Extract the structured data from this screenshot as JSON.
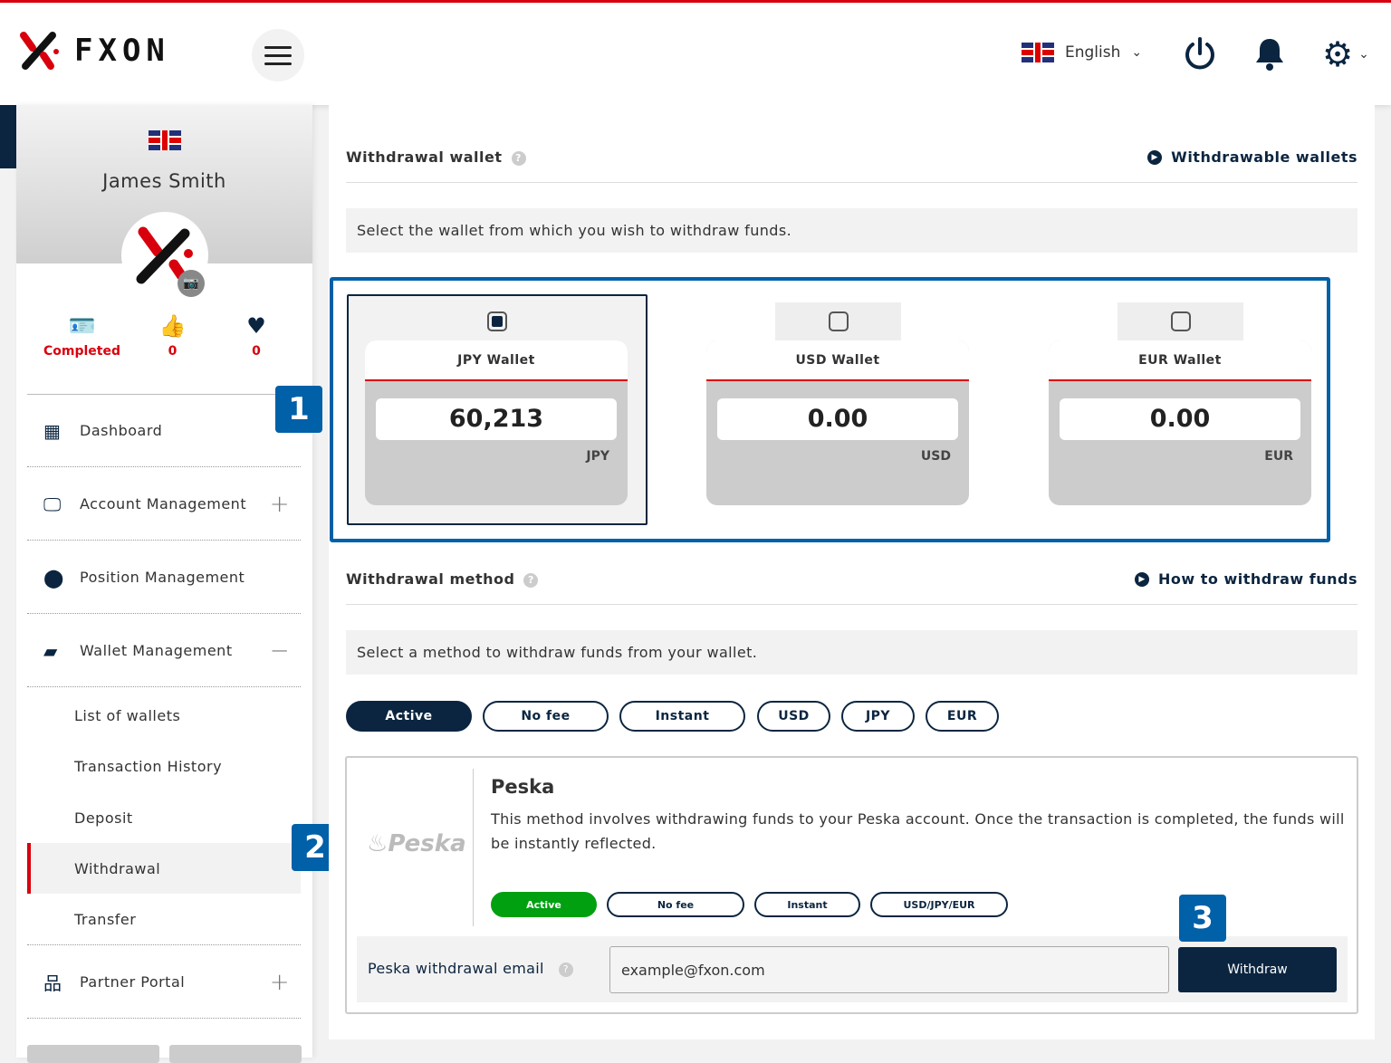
{
  "brand": {
    "name": "FXON",
    "accent": "#d9000d",
    "navy": "#0b2540",
    "highlight": "#0060a8"
  },
  "header": {
    "language": "English",
    "icons": [
      "menu-icon",
      "power-icon",
      "bell-icon",
      "gear-icon"
    ]
  },
  "profile": {
    "name": "James Smith",
    "stats": [
      {
        "icon": "id-card-check-icon",
        "value": "Completed"
      },
      {
        "icon": "thumbs-up-icon",
        "value": "0"
      },
      {
        "icon": "heart-icon",
        "value": "0"
      }
    ]
  },
  "sidebar": {
    "items": [
      {
        "label": "Dashboard",
        "icon": "grid-icon"
      },
      {
        "label": "Account Management",
        "icon": "monitor-icon",
        "toggle": "+"
      },
      {
        "label": "Position Management",
        "icon": "map-pin-icon"
      },
      {
        "label": "Wallet Management",
        "icon": "wallet-icon",
        "toggle": "−"
      },
      {
        "label": "Partner Portal",
        "icon": "sitemap-icon",
        "toggle": "+"
      }
    ],
    "subitems": [
      "List of wallets",
      "Transaction History",
      "Deposit",
      "Withdrawal",
      "Transfer"
    ],
    "active_subitem": "Withdrawal"
  },
  "badges": [
    "1",
    "2",
    "3"
  ],
  "wallet_section": {
    "title": "Withdrawal wallet",
    "link": "Withdrawable wallets",
    "note": "Select the wallet from which you wish to withdraw funds.",
    "wallets": [
      {
        "name": "JPY Wallet",
        "balance": "60,213",
        "currency": "JPY",
        "selected": true
      },
      {
        "name": "USD Wallet",
        "balance": "0.00",
        "currency": "USD",
        "selected": false
      },
      {
        "name": "EUR Wallet",
        "balance": "0.00",
        "currency": "EUR",
        "selected": false
      }
    ]
  },
  "method_section": {
    "title": "Withdrawal method",
    "link": "How to withdraw funds",
    "note": "Select a method to withdraw funds from your wallet.",
    "filters": [
      {
        "label": "Active",
        "active": true
      },
      {
        "label": "No fee"
      },
      {
        "label": "Instant"
      },
      {
        "label": "USD"
      },
      {
        "label": "JPY"
      },
      {
        "label": "EUR"
      }
    ]
  },
  "method": {
    "logo": "Peska",
    "name": "Peska",
    "description": "This method involves withdrawing funds to your Peska account. Once the transaction is completed, the funds will be instantly reflected.",
    "tags": [
      "Active",
      "No fee",
      "Instant",
      "USD/JPY/EUR"
    ],
    "email_label": "Peska withdrawal email",
    "email_value": "example@fxon.com",
    "button": "Withdraw"
  }
}
